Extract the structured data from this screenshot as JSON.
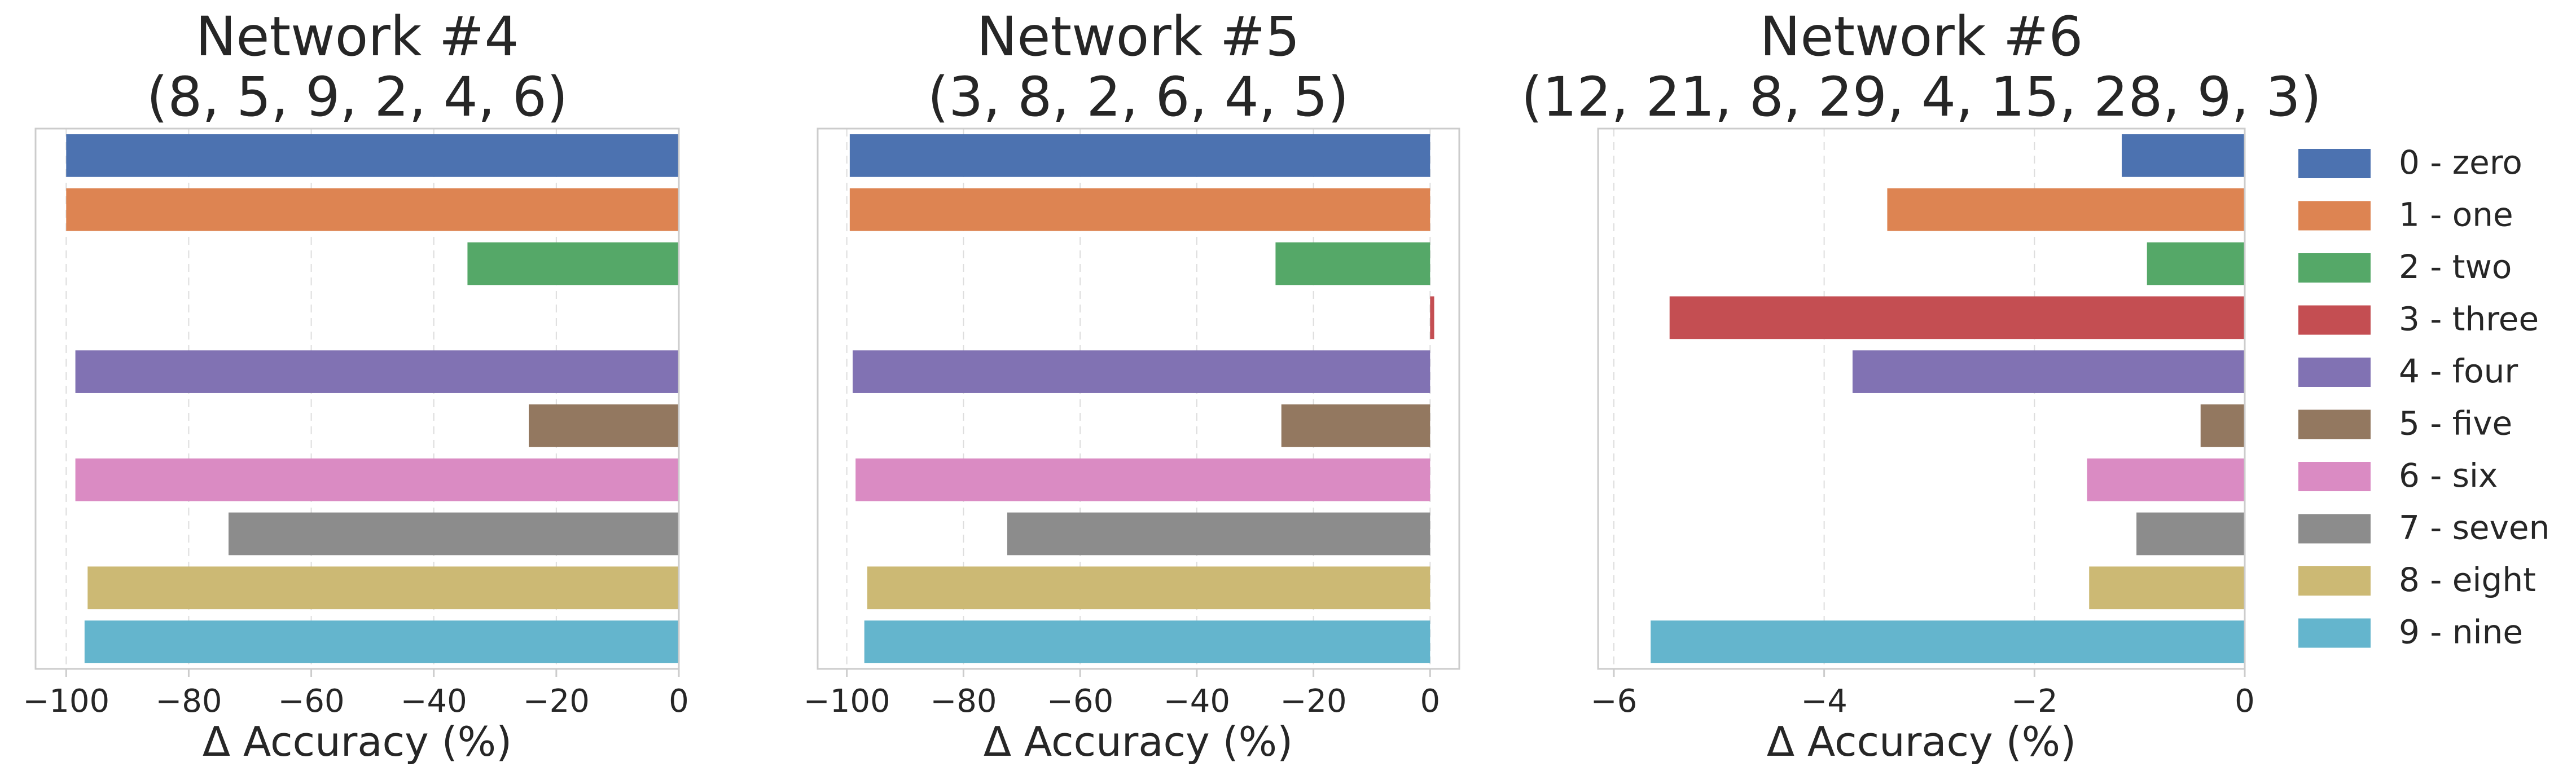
{
  "chart_data": [
    {
      "type": "bar",
      "orientation": "horizontal",
      "title": [
        "Network #4",
        "(8, 5, 9, 2, 4, 6)"
      ],
      "xlabel": "Δ Accuracy (%)",
      "xlim": [
        -105,
        0
      ],
      "xticks": [
        -100,
        -80,
        -60,
        -40,
        -20,
        0
      ],
      "xtick_labels": [
        "−100",
        "−80",
        "−60",
        "−40",
        "−20",
        "0"
      ],
      "categories": [
        "0 - zero",
        "1 - one",
        "2 - two",
        "3 - three",
        "4 - four",
        "5 - five",
        "6 - six",
        "7 - seven",
        "8 - eight",
        "9 - nine"
      ],
      "values": [
        -100,
        -100,
        -34.5,
        0,
        -98.5,
        -24.5,
        -98.5,
        -73.5,
        -96.5,
        -97
      ]
    },
    {
      "type": "bar",
      "orientation": "horizontal",
      "title": [
        "Network #5",
        "(3, 8, 2, 6, 4, 5)"
      ],
      "xlabel": "Δ Accuracy (%)",
      "xlim": [
        -105,
        5
      ],
      "xticks": [
        -100,
        -80,
        -60,
        -40,
        -20,
        0
      ],
      "xtick_labels": [
        "−100",
        "−80",
        "−60",
        "−40",
        "−20",
        "0"
      ],
      "categories": [
        "0 - zero",
        "1 - one",
        "2 - two",
        "3 - three",
        "4 - four",
        "5 - five",
        "6 - six",
        "7 - seven",
        "8 - eight",
        "9 - nine"
      ],
      "values": [
        -99.5,
        -99.5,
        -26.5,
        0.7,
        -99,
        -25.5,
        -98.5,
        -72.5,
        -96.5,
        -97
      ]
    },
    {
      "type": "bar",
      "orientation": "horizontal",
      "title": [
        "Network #6",
        "(12, 21, 8, 29, 4, 15, 28, 9, 3)"
      ],
      "xlabel": "Δ Accuracy (%)",
      "xlim": [
        -6.15,
        0
      ],
      "xticks": [
        -6,
        -4,
        -2,
        0
      ],
      "xtick_labels": [
        "−6",
        "−4",
        "−2",
        "0"
      ],
      "categories": [
        "0 - zero",
        "1 - one",
        "2 - two",
        "3 - three",
        "4 - four",
        "5 - five",
        "6 - six",
        "7 - seven",
        "8 - eight",
        "9 - nine"
      ],
      "values": [
        -1.17,
        -3.4,
        -0.93,
        -5.47,
        -3.73,
        -0.42,
        -1.5,
        -1.03,
        -1.48,
        -5.65
      ]
    }
  ],
  "legend": {
    "placement": "right",
    "items": [
      {
        "label": "0 - zero",
        "color": "#4c72b0"
      },
      {
        "label": "1 - one",
        "color": "#dd8452"
      },
      {
        "label": "2 - two",
        "color": "#55a868"
      },
      {
        "label": "3 - three",
        "color": "#c44e52"
      },
      {
        "label": "4 - four",
        "color": "#8172b3"
      },
      {
        "label": "5 - five",
        "color": "#937860"
      },
      {
        "label": "6 - six",
        "color": "#da8bc3"
      },
      {
        "label": "7 - seven",
        "color": "#8c8c8c"
      },
      {
        "label": "8 - eight",
        "color": "#ccb974"
      },
      {
        "label": "9 - nine",
        "color": "#64b5cd"
      }
    ]
  }
}
